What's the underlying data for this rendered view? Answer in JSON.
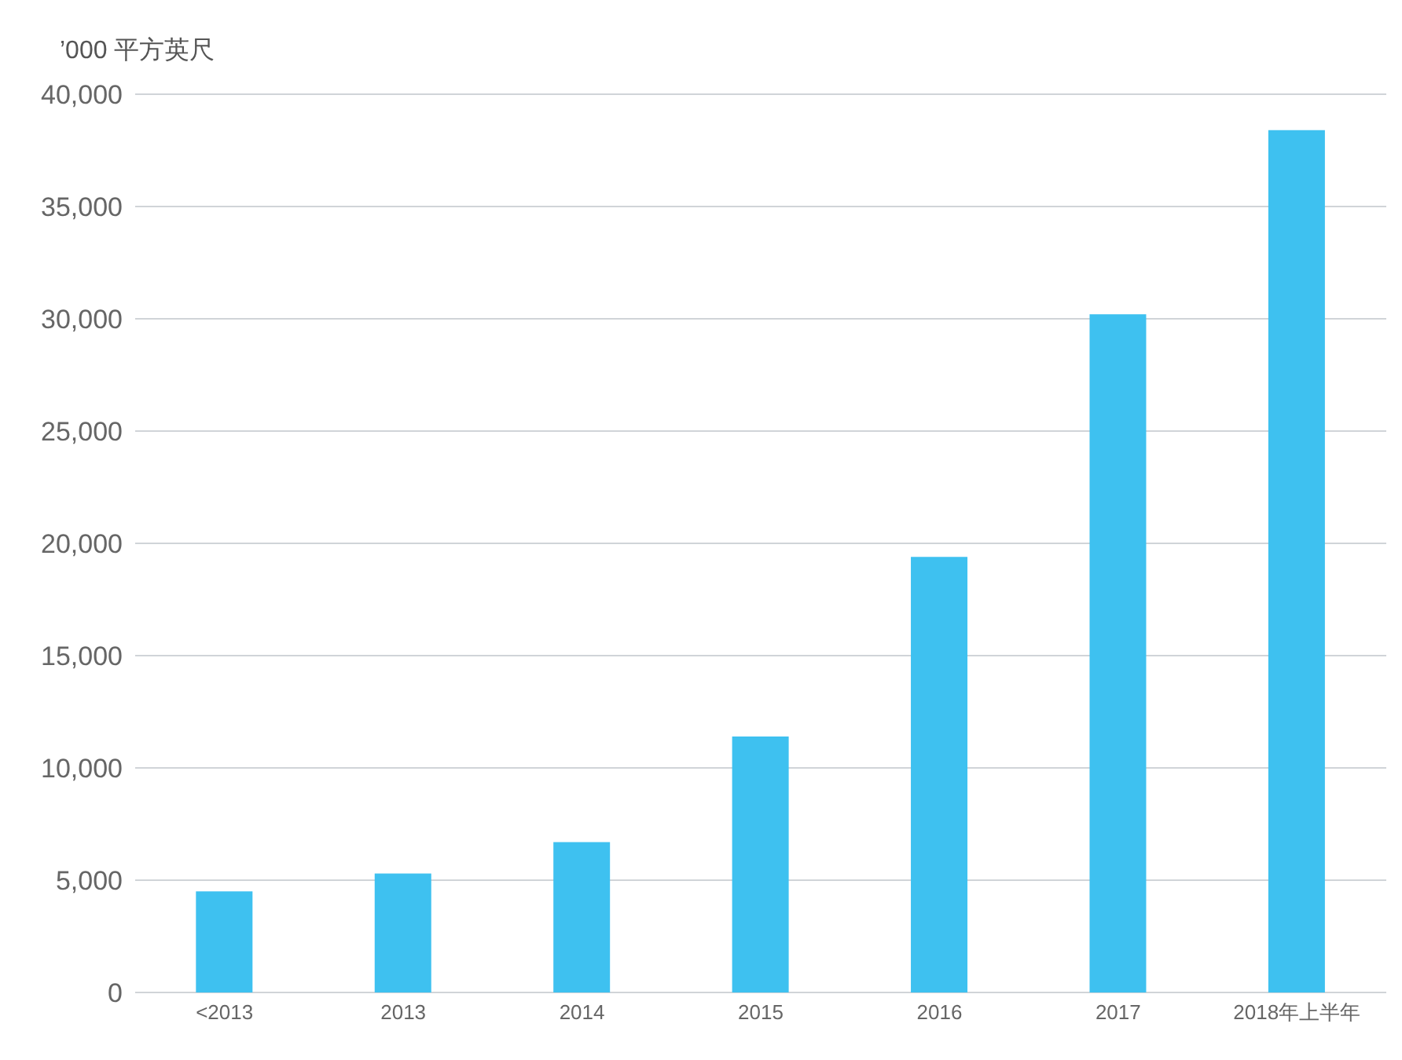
{
  "chart_data": {
    "type": "bar",
    "ylabel": "’000 平方英尺",
    "categories": [
      "<2013",
      "2013",
      "2014",
      "2015",
      "2016",
      "2017",
      "2018年上半年"
    ],
    "values": [
      4500,
      5300,
      6700,
      11400,
      19400,
      30200,
      38400
    ],
    "color": "#3ec1f0",
    "ylim": [
      0,
      40000
    ],
    "yticks": [
      {
        "value": 0,
        "label": "0"
      },
      {
        "value": 5000,
        "label": "5,000"
      },
      {
        "value": 10000,
        "label": "10,000"
      },
      {
        "value": 15000,
        "label": "15,000"
      },
      {
        "value": 20000,
        "label": "20,000"
      },
      {
        "value": 25000,
        "label": "25,000"
      },
      {
        "value": 30000,
        "label": "30,000"
      },
      {
        "value": 35000,
        "label": "35,000"
      },
      {
        "value": 40000,
        "label": "40,000"
      }
    ],
    "grid": "y",
    "legend": false
  }
}
